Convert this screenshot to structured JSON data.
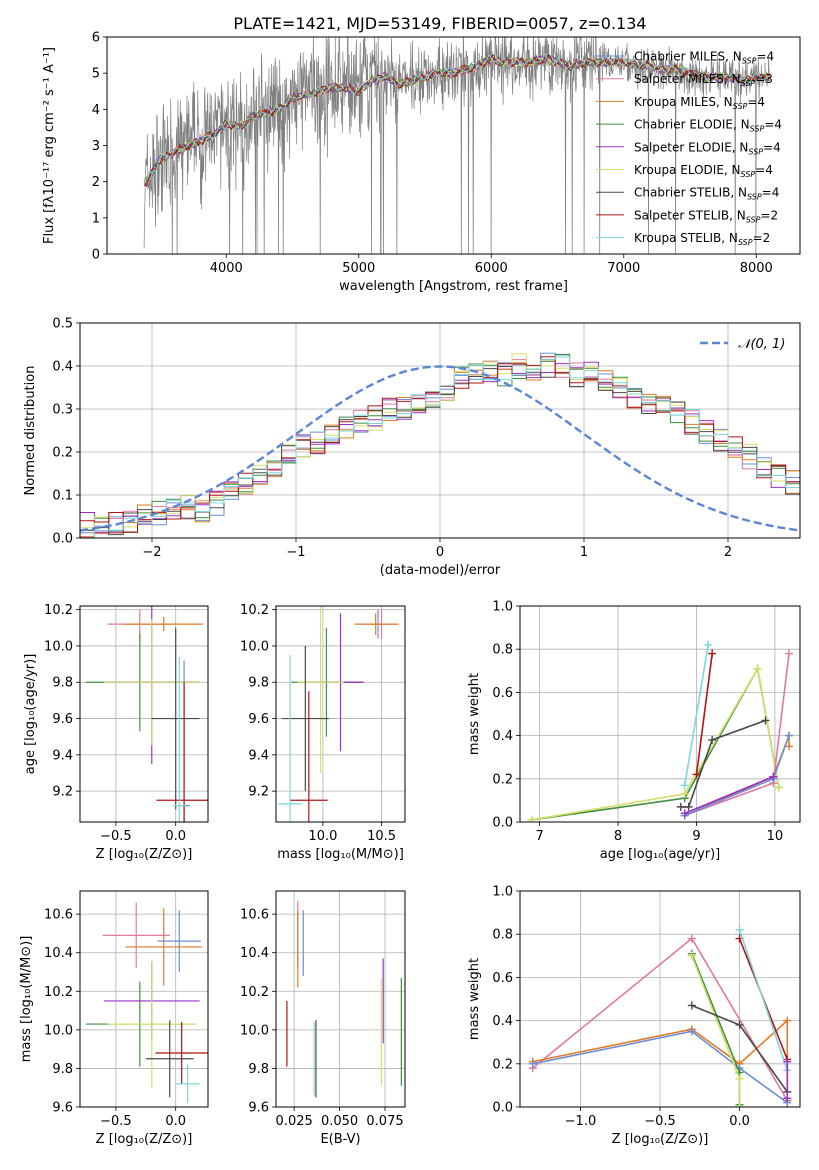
{
  "title": "PLATE=1421, MJD=53149, FIBERID=0057, z=0.134",
  "colors": {
    "Chabrier MILES": "#6b8fd6",
    "Salpeter MILES": "#e07a9f",
    "Kroupa MILES": "#e07b27",
    "Chabrier ELODIE": "#3f8f3f",
    "Salpeter ELODIE": "#9b30c8",
    "Kroupa ELODIE": "#d2e06a",
    "Chabrier STELIB": "#4a4a4a",
    "Salpeter STELIB": "#b01515",
    "Kroupa STELIB": "#7fd6d8",
    "data": "#808080",
    "normal": "#5b86d6"
  },
  "chart_data": [
    {
      "id": "spectrum",
      "type": "line",
      "title": "PLATE=1421, MJD=53149, FIBERID=0057, z=0.134",
      "xlabel": "wavelength [Angstrom, rest frame]",
      "ylabel": "Flux [fλ10⁻¹⁷ erg cm⁻² s⁻¹ A⁻¹]",
      "xlim": [
        3100,
        8330
      ],
      "ylim": [
        0,
        6
      ],
      "xticks": [
        4000,
        5000,
        6000,
        7000,
        8000
      ],
      "yticks": [
        0,
        1,
        2,
        3,
        4,
        5,
        6
      ],
      "legend_position": "top-right",
      "legend": [
        "Chabrier MILES, N_SSP=4",
        "Salpeter MILES, N_SSP=3",
        "Kroupa MILES, N_SSP=4",
        "Chabrier ELODIE, N_SSP=4",
        "Salpeter ELODIE, N_SSP=4",
        "Kroupa ELODIE, N_SSP=4",
        "Chabrier STELIB, N_SSP=4",
        "Salpeter STELIB, N_SSP=2",
        "Kroupa STELIB, N_SSP=2"
      ],
      "model_x": [
        3400,
        3500,
        3600,
        3700,
        3800,
        3900,
        4000,
        4100,
        4200,
        4300,
        4400,
        4500,
        4600,
        4700,
        4800,
        4900,
        5000,
        5100,
        5200,
        5300,
        5400,
        5500,
        5600,
        5700,
        5800,
        5900,
        6000,
        6100,
        6200,
        6300,
        6400,
        6500,
        6600,
        6700,
        6800,
        6900,
        7000,
        7100,
        7200,
        7300,
        7400,
        7500,
        7600,
        7700,
        7800,
        7900,
        8000
      ],
      "model_y": [
        2.0,
        2.6,
        2.8,
        3.0,
        3.1,
        3.3,
        3.6,
        3.5,
        3.8,
        3.9,
        4.0,
        4.3,
        4.4,
        4.5,
        4.6,
        4.6,
        4.5,
        4.8,
        4.9,
        4.7,
        4.8,
        4.9,
        5.0,
        5.0,
        5.1,
        5.2,
        5.4,
        5.3,
        5.3,
        5.3,
        5.4,
        5.3,
        5.2,
        5.3,
        5.3,
        5.3,
        5.3,
        5.2,
        5.2,
        5.1,
        5.1,
        5.0,
        4.9,
        4.9,
        4.9,
        4.8,
        4.9
      ],
      "data_range": [
        3380,
        8100
      ]
    },
    {
      "id": "residuals",
      "type": "bar",
      "xlabel": "(data-model)/error",
      "ylabel": "Normed distribution",
      "xlim": [
        -2.5,
        2.5
      ],
      "ylim": [
        0,
        0.5
      ],
      "xticks": [
        -2,
        -1,
        0,
        1,
        2
      ],
      "yticks": [
        0.0,
        0.1,
        0.2,
        0.3,
        0.4,
        0.5
      ],
      "legend": [
        "𝒩(0, 1)"
      ],
      "legend_position": "top-right",
      "bin_width": 0.1,
      "x_start": -2.5,
      "values": [
        0.03,
        0.03,
        0.03,
        0.04,
        0.05,
        0.06,
        0.07,
        0.07,
        0.06,
        0.08,
        0.11,
        0.13,
        0.15,
        0.17,
        0.19,
        0.21,
        0.22,
        0.24,
        0.26,
        0.27,
        0.28,
        0.3,
        0.3,
        0.31,
        0.33,
        0.35,
        0.37,
        0.38,
        0.39,
        0.38,
        0.4,
        0.39,
        0.4,
        0.4,
        0.38,
        0.38,
        0.36,
        0.35,
        0.33,
        0.31,
        0.3,
        0.29,
        0.27,
        0.25,
        0.23,
        0.21,
        0.19,
        0.16,
        0.14,
        0.13,
        0.11,
        0.1,
        0.09,
        0.08,
        0.06,
        0.06,
        0.05,
        0.04,
        0.04,
        0.04
      ]
    },
    {
      "id": "age-vs-Z",
      "type": "scatter",
      "xlabel": "Z [log₁₀(Z/Z⊙)]",
      "ylabel": "age  [log₁₀(age/yr)]",
      "xlim": [
        -0.8,
        0.27
      ],
      "ylim": [
        9.03,
        10.22
      ],
      "xticks": [
        -0.5,
        0.0
      ],
      "yticks": [
        9.2,
        9.4,
        9.6,
        9.8,
        10.0,
        10.2
      ],
      "points": [
        {
          "name": "Chabrier MILES",
          "x": 0.07,
          "y": 9.12,
          "xerr": 0.05,
          "yerr": 0.8
        },
        {
          "name": "Salpeter MILES",
          "x": -0.3,
          "y": 10.12,
          "xerr": 0.27,
          "yerr": 0.08
        },
        {
          "name": "Kroupa MILES",
          "x": -0.1,
          "y": 10.12,
          "xerr": 0.33,
          "yerr": 0.04
        },
        {
          "name": "Chabrier ELODIE",
          "x": -0.3,
          "y": 9.8,
          "xerr": 0.45,
          "yerr": 0.27
        },
        {
          "name": "Salpeter ELODIE",
          "x": -0.2,
          "y": 9.8,
          "xerr": 0.4,
          "yerr": 0.45
        },
        {
          "name": "Kroupa ELODIE",
          "x": -0.2,
          "y": 9.8,
          "xerr": 0.4,
          "yerr": 0.35
        },
        {
          "name": "Chabrier STELIB",
          "x": 0.0,
          "y": 9.6,
          "xerr": 0.2,
          "yerr": 0.5
        },
        {
          "name": "Salpeter STELIB",
          "x": 0.07,
          "y": 9.15,
          "xerr": 0.23,
          "yerr": 0.65
        },
        {
          "name": "Kroupa STELIB",
          "x": 0.03,
          "y": 9.12,
          "xerr": 0.05,
          "yerr": 0.82
        }
      ]
    },
    {
      "id": "age-vs-mass",
      "type": "scatter",
      "xlabel": "mass [log₁₀(M/M⊙)]",
      "ylabel": "",
      "xlim": [
        9.6,
        10.7
      ],
      "ylim": [
        9.03,
        10.22
      ],
      "xticks": [
        10.0,
        10.5
      ],
      "yticks": [
        9.2,
        9.4,
        9.6,
        9.8,
        10.0,
        10.2
      ],
      "points": [
        {
          "name": "Chabrier MILES",
          "x": 10.47,
          "y": 10.12,
          "xerr": 0.06,
          "yerr": 0.08
        },
        {
          "name": "Salpeter MILES",
          "x": 10.5,
          "y": 10.12,
          "xerr": 0.15,
          "yerr": 0.08
        },
        {
          "name": "Kroupa MILES",
          "x": 10.45,
          "y": 10.12,
          "xerr": 0.18,
          "yerr": 0.06
        },
        {
          "name": "Chabrier ELODIE",
          "x": 10.03,
          "y": 9.8,
          "xerr": 0.3,
          "yerr": 0.3
        },
        {
          "name": "Salpeter ELODIE",
          "x": 10.15,
          "y": 9.8,
          "xerr": 0.2,
          "yerr": 0.38
        },
        {
          "name": "Kroupa ELODIE",
          "x": 9.98,
          "y": 9.8,
          "xerr": 0.2,
          "yerr": 0.5
        },
        {
          "name": "Chabrier STELIB",
          "x": 9.85,
          "y": 9.6,
          "xerr": 0.2,
          "yerr": 0.4
        },
        {
          "name": "Salpeter STELIB",
          "x": 9.88,
          "y": 9.15,
          "xerr": 0.16,
          "yerr": 0.6
        },
        {
          "name": "Kroupa STELIB",
          "x": 9.72,
          "y": 9.13,
          "xerr": 0.1,
          "yerr": 0.82
        }
      ]
    },
    {
      "id": "weight-vs-age",
      "type": "line",
      "xlabel": "age  [log₁₀(age/yr)]",
      "ylabel": "mass weight",
      "xlim": [
        6.75,
        10.32
      ],
      "ylim": [
        0,
        1.0
      ],
      "xticks": [
        7,
        8,
        9,
        10
      ],
      "yticks": [
        0.0,
        0.2,
        0.4,
        0.6,
        0.8,
        1.0
      ],
      "series": [
        {
          "name": "Chabrier ELODIE",
          "x": [
            6.9,
            8.85,
            9.78,
            10.05
          ],
          "y": [
            0.01,
            0.11,
            0.71,
            0.16
          ]
        },
        {
          "name": "Kroupa ELODIE",
          "x": [
            6.9,
            8.85,
            9.78,
            10.05
          ],
          "y": [
            0.01,
            0.13,
            0.71,
            0.16
          ]
        },
        {
          "name": "Chabrier STELIB",
          "x": [
            8.8,
            8.9,
            9.2,
            9.88
          ],
          "y": [
            0.07,
            0.07,
            0.38,
            0.47
          ]
        },
        {
          "name": "Salpeter STELIB",
          "x": [
            9.0,
            9.2
          ],
          "y": [
            0.22,
            0.78
          ]
        },
        {
          "name": "Kroupa STELIB",
          "x": [
            8.85,
            9.15
          ],
          "y": [
            0.17,
            0.82
          ]
        },
        {
          "name": "Salpeter MILES",
          "x": [
            8.85,
            9.98,
            10.18
          ],
          "y": [
            0.03,
            0.18,
            0.78
          ]
        },
        {
          "name": "Kroupa MILES",
          "x": [
            8.85,
            9.98,
            10.18,
            10.18
          ],
          "y": [
            0.03,
            0.21,
            0.4,
            0.35
          ]
        },
        {
          "name": "Chabrier MILES",
          "x": [
            8.85,
            9.98,
            10.18
          ],
          "y": [
            0.03,
            0.2,
            0.4
          ]
        },
        {
          "name": "Salpeter ELODIE",
          "x": [
            8.85,
            9.98
          ],
          "y": [
            0.04,
            0.21
          ]
        }
      ]
    },
    {
      "id": "mass-vs-Z",
      "type": "scatter",
      "xlabel": "Z [log₁₀(Z/Z⊙)]",
      "ylabel": "mass [log₁₀(M/M⊙)]",
      "xlim": [
        -0.8,
        0.27
      ],
      "ylim": [
        9.6,
        10.72
      ],
      "xticks": [
        -0.5,
        0.0
      ],
      "yticks": [
        9.6,
        9.8,
        10.0,
        10.2,
        10.4,
        10.6
      ],
      "points": [
        {
          "name": "Chabrier MILES",
          "x": 0.03,
          "y": 10.46,
          "xerr": 0.18,
          "yerr": 0.16
        },
        {
          "name": "Salpeter MILES",
          "x": -0.33,
          "y": 10.49,
          "xerr": 0.28,
          "yerr": 0.17
        },
        {
          "name": "Kroupa MILES",
          "x": -0.1,
          "y": 10.43,
          "xerr": 0.32,
          "yerr": 0.2
        },
        {
          "name": "Chabrier ELODIE",
          "x": -0.3,
          "y": 10.03,
          "xerr": 0.45,
          "yerr": 0.22
        },
        {
          "name": "Salpeter ELODIE",
          "x": -0.2,
          "y": 10.15,
          "xerr": 0.4,
          "yerr": 0.2
        },
        {
          "name": "Kroupa ELODIE",
          "x": -0.2,
          "y": 10.03,
          "xerr": 0.37,
          "yerr": 0.33
        },
        {
          "name": "Chabrier STELIB",
          "x": -0.05,
          "y": 9.85,
          "xerr": 0.2,
          "yerr": 0.2
        },
        {
          "name": "Salpeter STELIB",
          "x": 0.05,
          "y": 9.88,
          "xerr": 0.22,
          "yerr": 0.16
        },
        {
          "name": "Kroupa STELIB",
          "x": 0.1,
          "y": 9.72,
          "xerr": 0.1,
          "yerr": 0.1
        }
      ]
    },
    {
      "id": "mass-vs-ebv",
      "type": "scatter",
      "xlabel": "E(B-V)",
      "ylabel": "",
      "xlim": [
        0.015,
        0.086
      ],
      "ylim": [
        9.6,
        10.72
      ],
      "xticks": [
        0.025,
        0.05,
        0.075
      ],
      "yticks": [
        9.6,
        9.8,
        10.0,
        10.2,
        10.4,
        10.6
      ],
      "points": [
        {
          "name": "Chabrier MILES",
          "x": 0.03,
          "y": 10.45,
          "xerr": 0,
          "yerr": 0.17
        },
        {
          "name": "Salpeter MILES",
          "x": 0.027,
          "y": 10.5,
          "xerr": 0,
          "yerr": 0.17
        },
        {
          "name": "Kroupa MILES",
          "x": 0.027,
          "y": 10.42,
          "xerr": 0,
          "yerr": 0.2
        },
        {
          "name": "Chabrier ELODIE",
          "x": 0.084,
          "y": 9.99,
          "xerr": 0,
          "yerr": 0.28
        },
        {
          "name": "Salpeter ELODIE",
          "x": 0.074,
          "y": 10.15,
          "xerr": 0,
          "yerr": 0.22
        },
        {
          "name": "Kroupa ELODIE",
          "x": 0.073,
          "y": 9.99,
          "xerr": 0,
          "yerr": 0.28
        },
        {
          "name": "Chabrier STELIB",
          "x": 0.037,
          "y": 9.85,
          "xerr": 0,
          "yerr": 0.2
        },
        {
          "name": "Salpeter STELIB",
          "x": 0.021,
          "y": 9.98,
          "xerr": 0,
          "yerr": 0.17
        },
        {
          "name": "Kroupa STELIB",
          "x": 0.036,
          "y": 9.85,
          "xerr": 0,
          "yerr": 0.19
        }
      ]
    },
    {
      "id": "weight-vs-Z",
      "type": "line",
      "xlabel": "Z [log₁₀(Z/Z⊙)]",
      "ylabel": "mass weight",
      "xlim": [
        -1.38,
        0.38
      ],
      "ylim": [
        0,
        1.0
      ],
      "xticks": [
        -1.0,
        -0.5,
        0.0
      ],
      "yticks": [
        0.0,
        0.2,
        0.4,
        0.6,
        0.8,
        1.0
      ],
      "series": [
        {
          "name": "Salpeter MILES",
          "x": [
            -1.3,
            -0.3,
            0.3
          ],
          "y": [
            0.18,
            0.78,
            0.03
          ]
        },
        {
          "name": "Kroupa MILES",
          "x": [
            -1.3,
            -0.3,
            0.0,
            0.3,
            0.3
          ],
          "y": [
            0.21,
            0.36,
            0.2,
            0.4,
            0.03
          ]
        },
        {
          "name": "Chabrier MILES",
          "x": [
            -1.3,
            -0.3,
            0.0,
            0.3
          ],
          "y": [
            0.2,
            0.35,
            0.18,
            0.02
          ]
        },
        {
          "name": "Chabrier ELODIE",
          "x": [
            -0.3,
            0.0,
            0.0
          ],
          "y": [
            0.71,
            0.16,
            0.01
          ]
        },
        {
          "name": "Kroupa ELODIE",
          "x": [
            -0.3,
            0.0,
            0.0
          ],
          "y": [
            0.7,
            0.13,
            0.0
          ]
        },
        {
          "name": "Chabrier STELIB",
          "x": [
            -0.3,
            0.0,
            0.3
          ],
          "y": [
            0.47,
            0.38,
            0.07
          ]
        },
        {
          "name": "Salpeter STELIB",
          "x": [
            0.0,
            0.3
          ],
          "y": [
            0.78,
            0.22
          ]
        },
        {
          "name": "Kroupa STELIB",
          "x": [
            0.0,
            0.3
          ],
          "y": [
            0.82,
            0.17
          ]
        },
        {
          "name": "Salpeter ELODIE",
          "x": [
            0.3,
            0.3
          ],
          "y": [
            0.04,
            0.21
          ]
        }
      ]
    }
  ]
}
